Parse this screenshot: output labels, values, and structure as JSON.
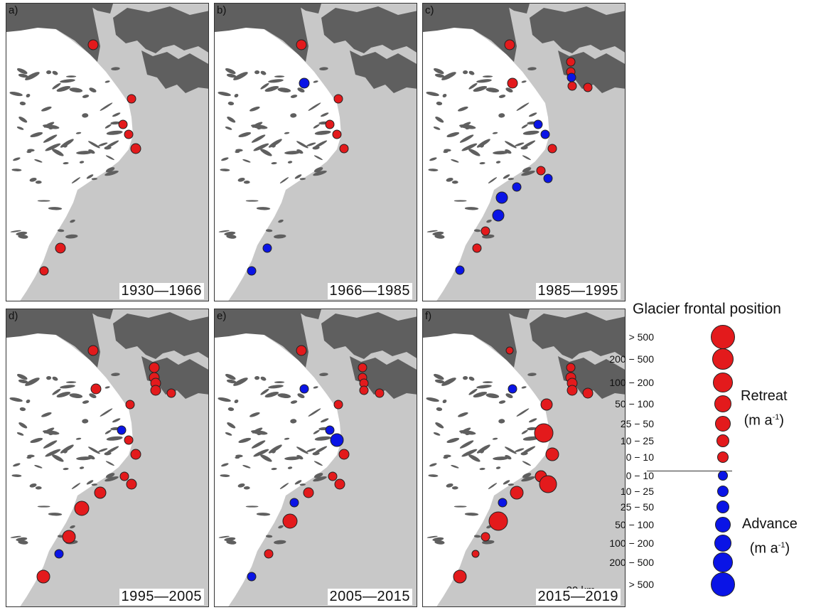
{
  "panels": [
    {
      "label": "a)",
      "period": "1930—1966"
    },
    {
      "label": "b)",
      "period": "1966—1985"
    },
    {
      "label": "c)",
      "period": "1985—1995"
    },
    {
      "label": "d)",
      "period": "1995—2005"
    },
    {
      "label": "e)",
      "period": "2005—2015"
    },
    {
      "label": "f)",
      "period": "2015—2019"
    }
  ],
  "scale_bar": {
    "label": "20 km"
  },
  "legend": {
    "title": "Glacier frontal position",
    "retreat_label": "Retreat",
    "advance_label": "Advance",
    "unit_base": "(m a",
    "unit_exp": "-1",
    "unit_close": ")",
    "retreat_classes": [
      "> 500",
      "200 − 500",
      "100 − 200",
      "50 − 100",
      "25 − 50",
      "10 − 25",
      "0 − 10"
    ],
    "advance_classes": [
      "0 − 10",
      "10 − 25",
      "25 − 50",
      "50 − 100",
      "100 − 200",
      "200 − 500",
      "> 500"
    ]
  },
  "colors": {
    "retreat": "#e31a1c",
    "advance": "#0a14e6",
    "land": "#5f5f5f",
    "ocean": "#c8c8c8",
    "ice": "#ffffff"
  }
}
